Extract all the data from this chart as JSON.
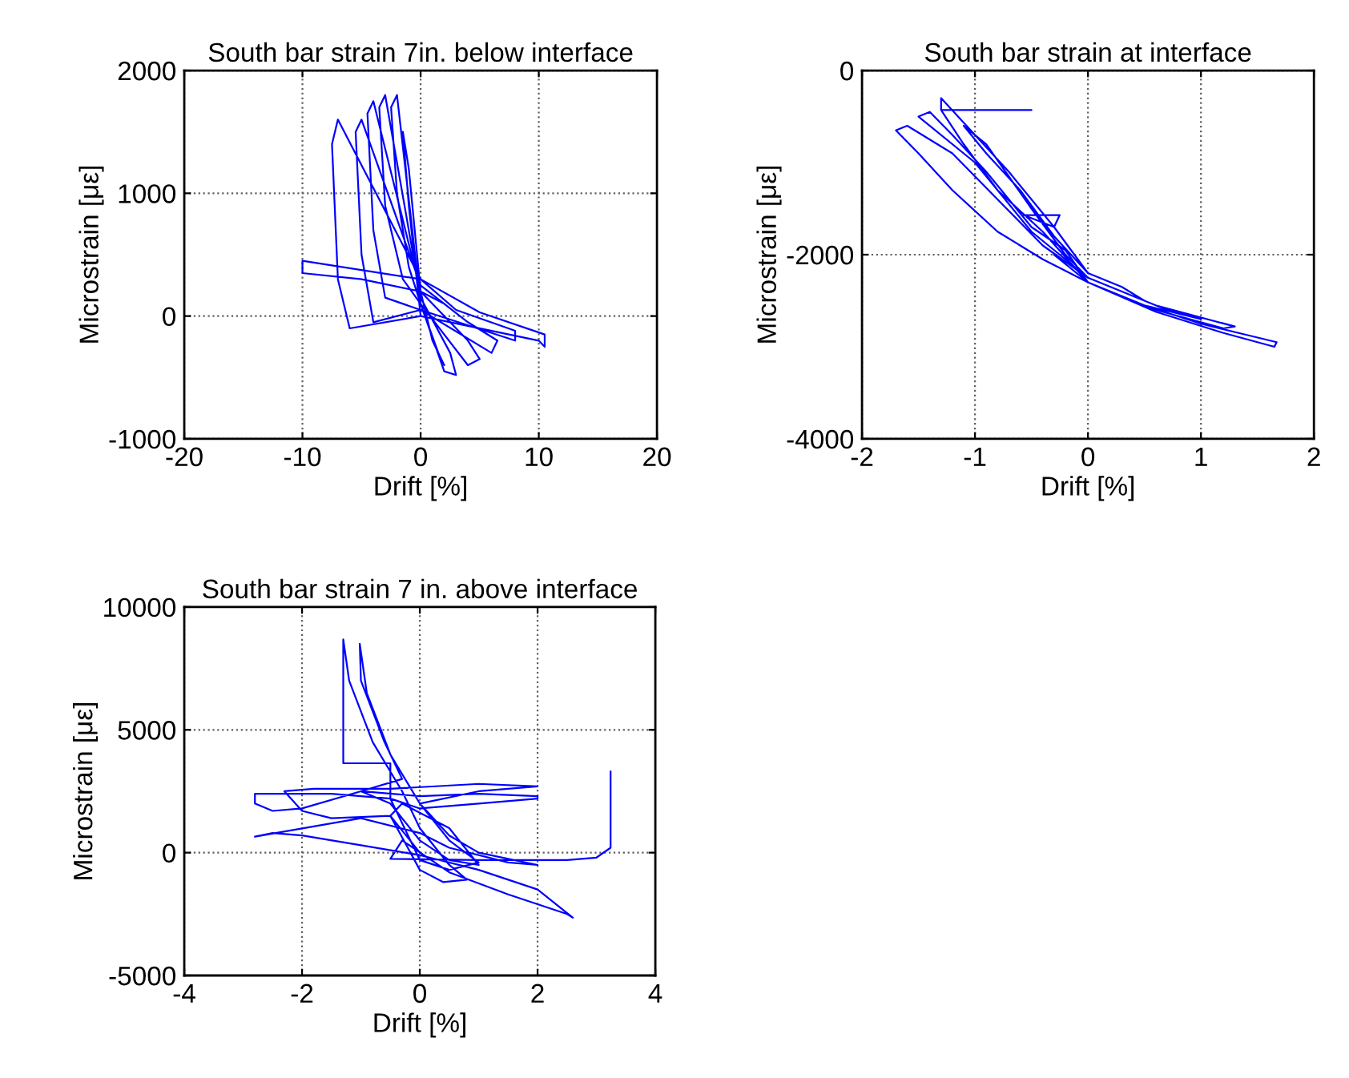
{
  "chart_data": [
    {
      "type": "line",
      "title": "South bar strain 7in. below interface",
      "xlabel": "Drift [%]",
      "ylabel": "Microstrain [με]",
      "xlim": [
        -20,
        20
      ],
      "ylim": [
        -1000,
        2000
      ],
      "xticks": [
        -20,
        -10,
        0,
        10,
        20
      ],
      "yticks": [
        -1000,
        0,
        1000,
        2000
      ],
      "grid": true,
      "marker": "none",
      "line_style": "solid",
      "series": [
        {
          "color": "#0000ff",
          "x": [
            0,
            -1,
            -1.5,
            -1,
            0,
            1,
            2,
            1.5,
            0,
            -2,
            -2.5,
            -2,
            -1,
            0,
            2,
            3,
            2.5,
            0,
            -3,
            -3.5,
            -3,
            -1.5,
            0,
            4,
            5,
            4,
            0,
            -4,
            -4.5,
            -4,
            -3,
            0,
            6,
            6.5,
            4,
            0,
            -5,
            -5.5,
            -5,
            -4,
            0,
            8,
            8,
            3,
            0,
            -7,
            -7.5,
            -7,
            -6,
            0,
            10,
            10.5,
            10.5,
            5,
            0,
            -10,
            -10,
            -5,
            0,
            2
          ],
          "values": [
            0,
            900,
            1500,
            1200,
            200,
            -200,
            -400,
            -300,
            100,
            1800,
            1700,
            1000,
            400,
            100,
            -450,
            -480,
            -300,
            150,
            1800,
            1700,
            900,
            300,
            100,
            -400,
            -350,
            -200,
            200,
            1750,
            1650,
            700,
            150,
            50,
            -300,
            -200,
            -50,
            250,
            1600,
            1500,
            500,
            -50,
            50,
            -200,
            -120,
            50,
            300,
            1600,
            1400,
            300,
            -100,
            0,
            -200,
            -250,
            -150,
            30,
            300,
            450,
            350,
            300,
            200,
            100
          ]
        }
      ]
    },
    {
      "type": "line",
      "title": "South bar strain at interface",
      "xlabel": "Drift [%]",
      "ylabel": "Microstrain [με]",
      "xlim": [
        -2,
        2
      ],
      "ylim": [
        -4000,
        0
      ],
      "xticks": [
        -2,
        -1,
        0,
        1,
        2
      ],
      "yticks": [
        -4000,
        -2000,
        0
      ],
      "grid": true,
      "marker": "none",
      "line_style": "solid",
      "series": [
        {
          "color": "#0000ff",
          "x": [
            0,
            -0.3,
            -0.6,
            -0.9,
            -1.1,
            -0.9,
            -0.5,
            -0.2,
            0,
            0.3,
            0.5,
            0.3,
            0,
            -0.3,
            -0.57,
            -0.25,
            -0.3,
            -0.7,
            -1.0,
            -1.3,
            -1.3,
            -0.5,
            -1.3,
            -1.1,
            -0.8,
            -0.4,
            0,
            0.5,
            1,
            0.7,
            0,
            -0.5,
            -1.0,
            -1.5,
            -1.4,
            -1.2,
            -0.9,
            -0.5,
            -0.2,
            0,
            0.6,
            1.2,
            1.3,
            0.6,
            0,
            -0.4,
            -0.8,
            -1.2,
            -1.6,
            -1.7,
            -1.5,
            -1.2,
            -0.8,
            -0.4,
            0,
            0.5,
            1,
            1.4,
            1.67,
            1.65,
            1.2,
            0.6,
            0,
            -0.3
          ],
          "values": [
            -2200,
            -1800,
            -1300,
            -900,
            -600,
            -800,
            -1500,
            -2000,
            -2250,
            -2400,
            -2500,
            -2350,
            -2200,
            -1700,
            -1570,
            -1570,
            -1700,
            -1100,
            -700,
            -300,
            -430,
            -430,
            -430,
            -800,
            -1300,
            -1750,
            -2300,
            -2550,
            -2700,
            -2600,
            -2250,
            -1750,
            -1000,
            -500,
            -450,
            -700,
            -1100,
            -1700,
            -1950,
            -2300,
            -2600,
            -2800,
            -2780,
            -2550,
            -2250,
            -1900,
            -1400,
            -900,
            -600,
            -650,
            -900,
            -1300,
            -1750,
            -2050,
            -2300,
            -2550,
            -2750,
            -2870,
            -2950,
            -3000,
            -2850,
            -2620,
            -2300,
            -2000
          ]
        }
      ]
    },
    {
      "type": "line",
      "title": "South bar strain 7 in. above interface",
      "xlabel": "Drift [%]",
      "ylabel": "Microstrain [με]",
      "xlim": [
        -4,
        4
      ],
      "ylim": [
        -5000,
        10000
      ],
      "xticks": [
        -4,
        -2,
        0,
        2,
        4
      ],
      "yticks": [
        -5000,
        0,
        5000,
        10000
      ],
      "grid": true,
      "marker": "none",
      "line_style": "solid",
      "series": [
        {
          "color": "#0000ff",
          "x": [
            0,
            -0.5,
            -0.3,
            0.5,
            1,
            0.5,
            0,
            -0.5,
            -1,
            0,
            1,
            2,
            2,
            1,
            0,
            -0.5,
            -1.5,
            -2.8,
            -2.8,
            -2.5,
            -2,
            -1,
            -0.3,
            -0.6,
            -1.0,
            -1.02,
            -0.9,
            -0.5,
            0,
            0.5,
            1,
            0.5,
            0,
            -0.5,
            -0.5,
            -1.3,
            -1.3,
            -1.2,
            -0.8,
            -0.3,
            0,
            0.5,
            0.8,
            0.4,
            0,
            -0.5,
            -1.5,
            -2,
            -2.3,
            -1.8,
            -0.5,
            1,
            2,
            1,
            0,
            0.5,
            1,
            2,
            1.5,
            0.5,
            0,
            -1,
            -2.8,
            -2.5,
            -2,
            -1,
            0,
            1,
            2,
            2.6,
            2.5,
            1.5,
            0.5,
            -0.3,
            -0.5,
            1,
            2.5,
            3.0,
            3.24,
            3.24
          ],
          "values": [
            0,
            1500,
            2000,
            1000,
            -500,
            -300,
            500,
            2000,
            2500,
            2300,
            2400,
            2300,
            2200,
            2000,
            1800,
            2200,
            2400,
            2400,
            2000,
            1700,
            1800,
            2500,
            3000,
            4500,
            7000,
            8500,
            6500,
            4000,
            2000,
            500,
            -400,
            -700,
            -300,
            2200,
            3640,
            3640,
            8680,
            7000,
            4500,
            2500,
            1000,
            -500,
            -1100,
            -1200,
            -700,
            1500,
            1400,
            1700,
            2500,
            2600,
            2600,
            2800,
            2700,
            2500,
            2000,
            700,
            0,
            -500,
            -400,
            200,
            800,
            1400,
            650,
            800,
            700,
            300,
            -100,
            -700,
            -1500,
            -2650,
            -2500,
            -1700,
            -800,
            500,
            -250,
            -300,
            -300,
            -200,
            200,
            3300
          ]
        }
      ]
    }
  ]
}
